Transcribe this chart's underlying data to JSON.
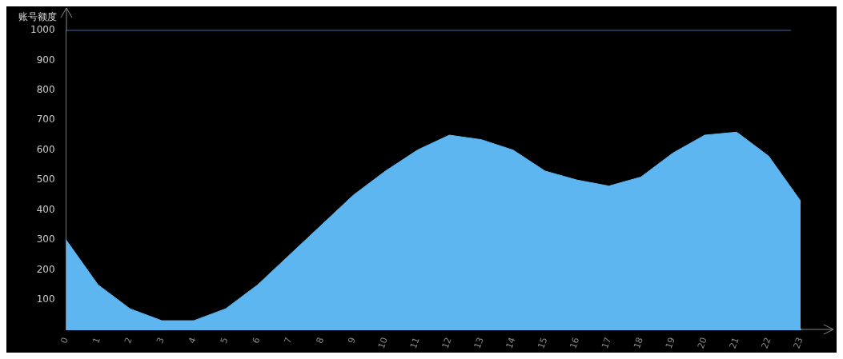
{
  "chart_data": {
    "type": "area",
    "ylabel": "账号额度",
    "categories": [
      "0",
      "1",
      "2",
      "3",
      "4",
      "5",
      "6",
      "7",
      "8",
      "9",
      "10",
      "11",
      "12",
      "13",
      "14",
      "15",
      "16",
      "17",
      "18",
      "19",
      "20",
      "21",
      "22",
      "23"
    ],
    "series": [
      {
        "color": "#5eb6f0",
        "values": [
          300,
          150,
          70,
          30,
          30,
          70,
          150,
          250,
          350,
          450,
          530,
          600,
          650,
          635,
          600,
          530,
          500,
          480,
          510,
          590,
          650,
          660,
          580,
          430
        ]
      }
    ],
    "ylim": [
      0,
      1000
    ],
    "yticks": [
      100,
      200,
      300,
      400,
      500,
      600,
      700,
      800,
      900,
      1000
    ],
    "ref_lines": [
      {
        "axis": "y",
        "value": 1000,
        "color": "#3f6aa0"
      }
    ],
    "grid": false,
    "legend": false
  }
}
